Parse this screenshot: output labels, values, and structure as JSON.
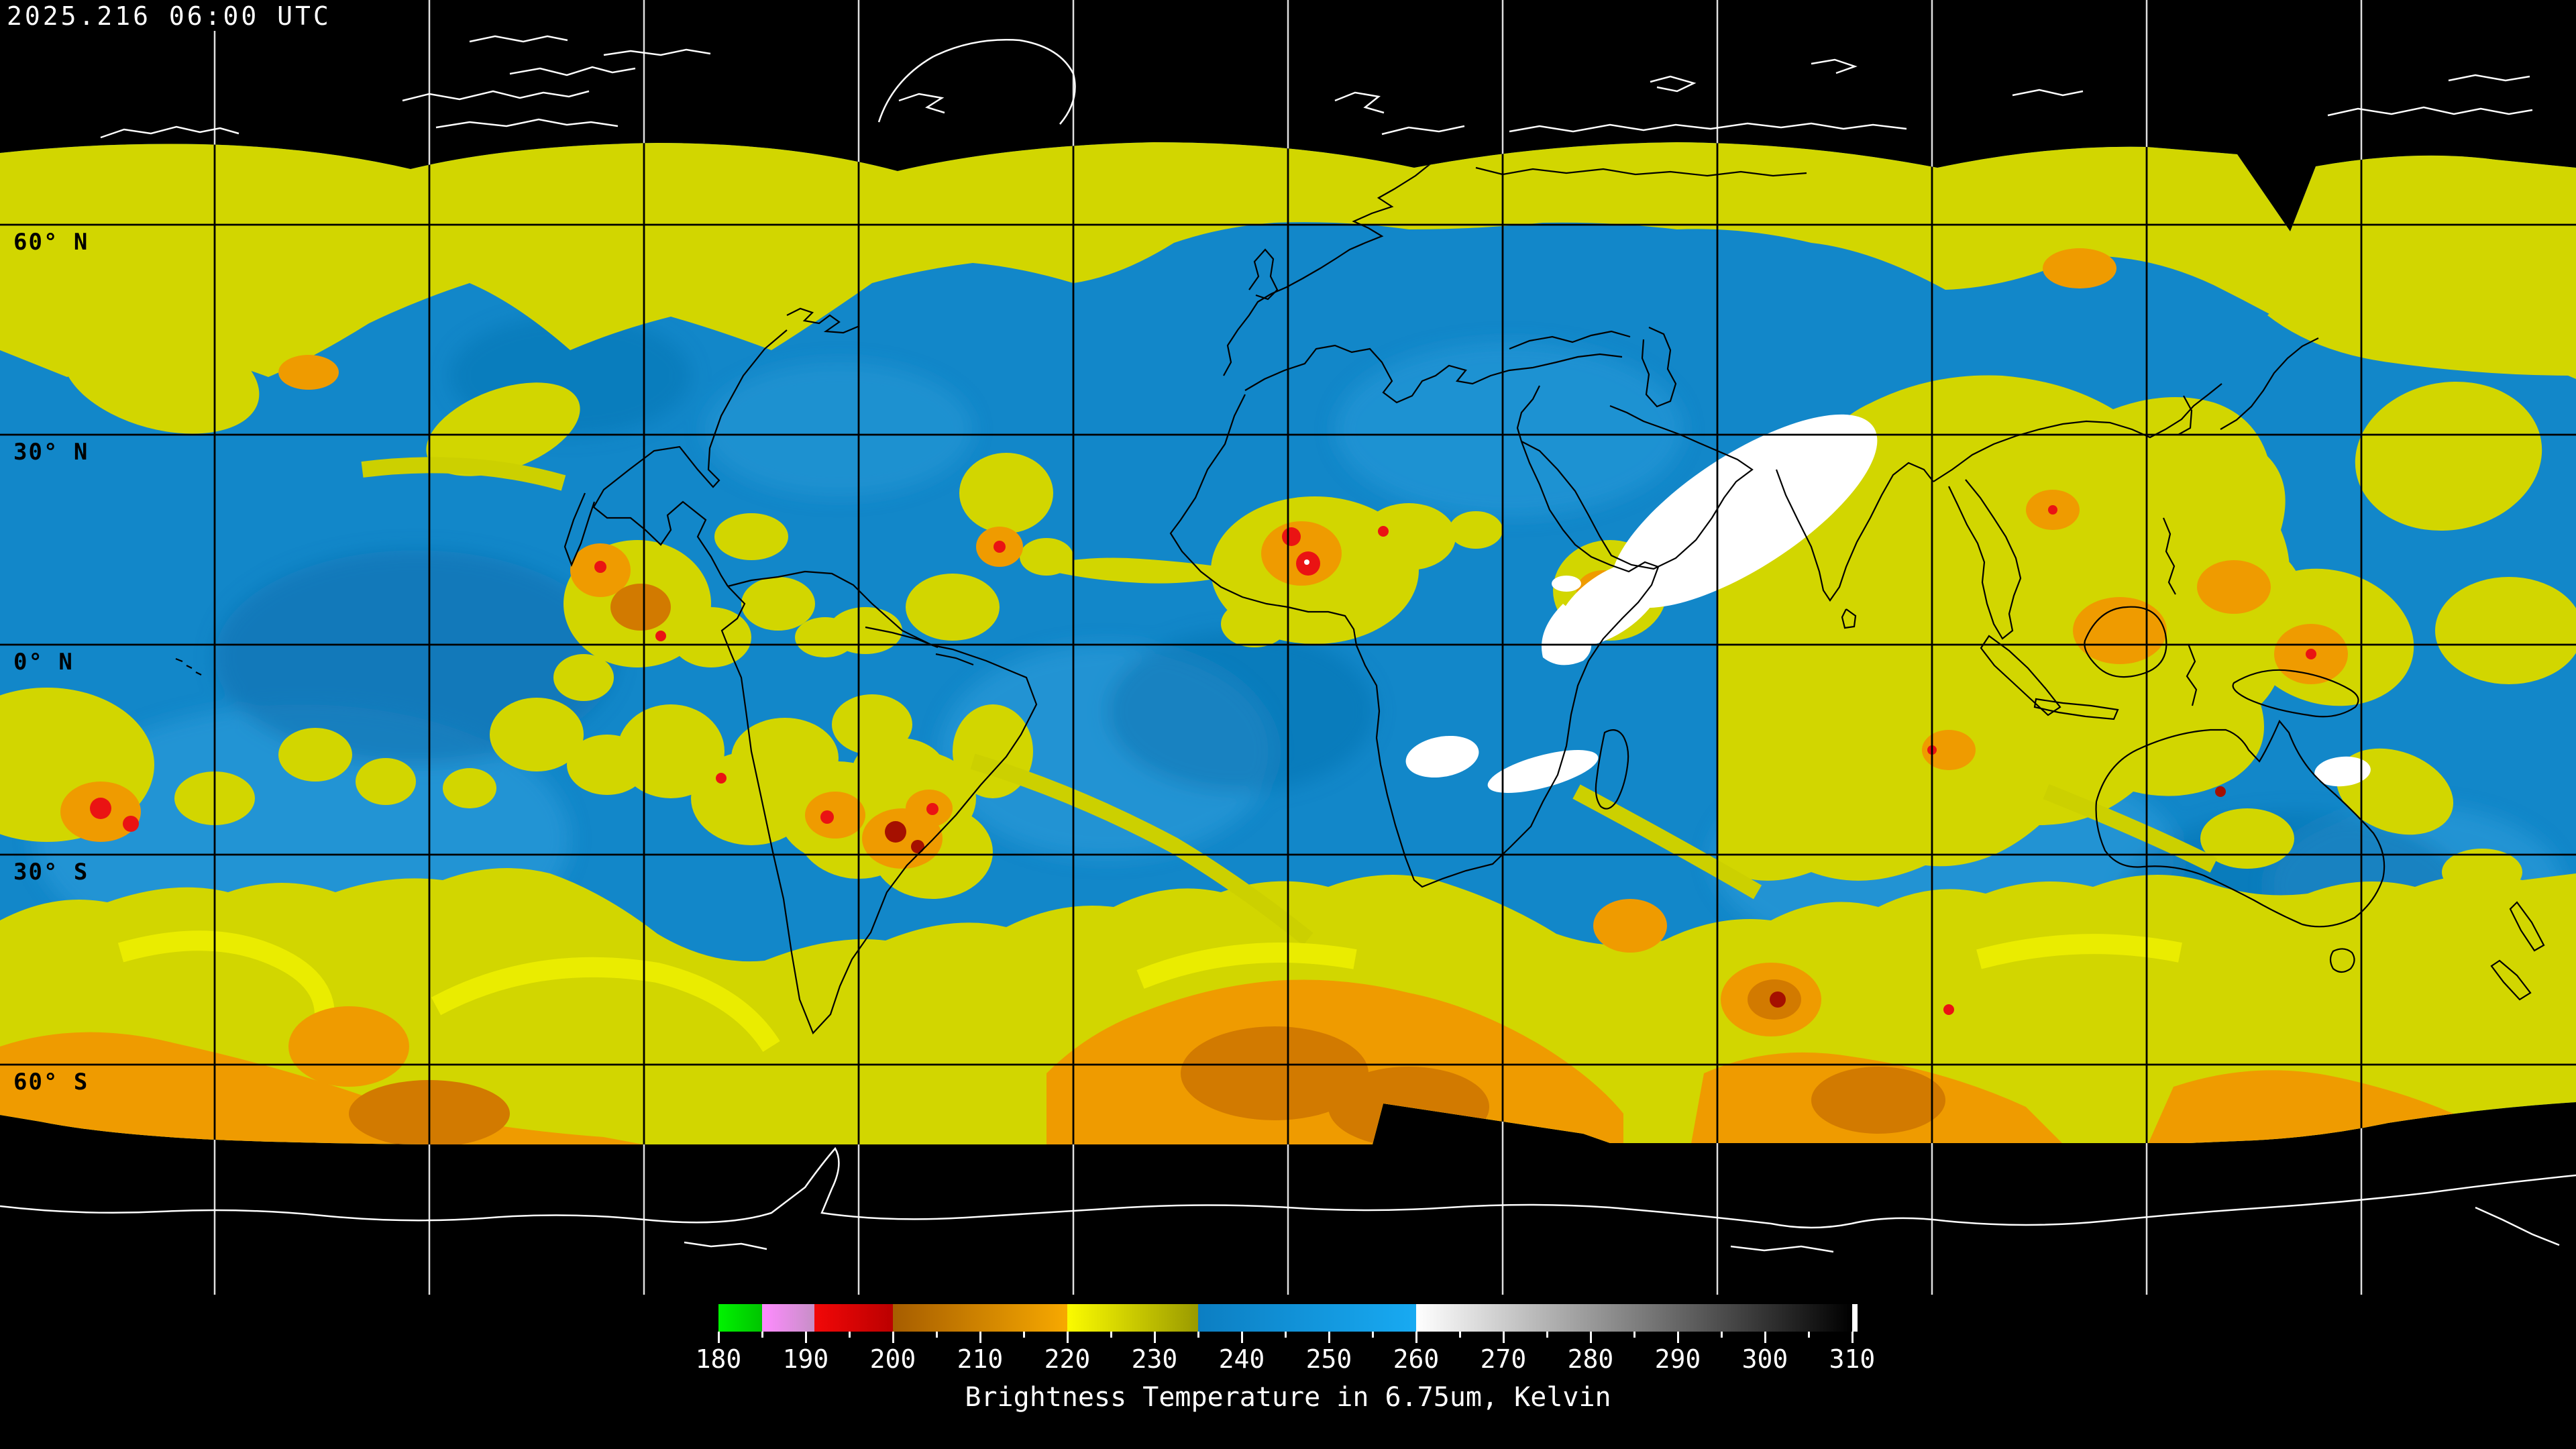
{
  "header": {
    "timestamp": "2025.216 06:00 UTC"
  },
  "map": {
    "lat_labels": [
      "60° N",
      "30° N",
      "0° N",
      "30° S",
      "60° S"
    ],
    "grid": {
      "lon_step_deg": 30,
      "lat_step_deg": 30
    },
    "colors": {
      "no_data": "#000000",
      "gridline_over_data": "#000000",
      "gridline_over_void": "#e0e0e0",
      "coastline_over_data": "#000000",
      "coastline_over_void": "#ffffff",
      "ocean_moist_base": "#1287c9"
    }
  },
  "colorbar": {
    "title": "Brightness Temperature in 6.75um, Kelvin",
    "units": "Kelvin",
    "min_value": 180,
    "max_value": 310,
    "major_ticks": [
      180,
      190,
      200,
      210,
      220,
      230,
      240,
      250,
      260,
      270,
      280,
      290,
      300,
      310
    ],
    "minor_tick_step": 5,
    "segments": [
      {
        "from": 180,
        "to": 185,
        "color_start": "#00f300",
        "color_end": "#00c400"
      },
      {
        "from": 185,
        "to": 191,
        "color_start": "#ff8bff",
        "color_end": "#c78fc7"
      },
      {
        "from": 191,
        "to": 200,
        "color_start": "#f20808",
        "color_end": "#bb0000"
      },
      {
        "from": 200,
        "to": 220,
        "color_start": "#a65d00",
        "color_end": "#f7a900"
      },
      {
        "from": 220,
        "to": 235,
        "color_start": "#fbfb00",
        "color_end": "#9a9a00"
      },
      {
        "from": 235,
        "to": 260,
        "color_start": "#0c7ec2",
        "color_end": "#18aaf2"
      },
      {
        "from": 260,
        "to": 310,
        "color_start": "#ffffff",
        "color_end": "#000000"
      }
    ],
    "end_cap_color": "#ffffff"
  }
}
